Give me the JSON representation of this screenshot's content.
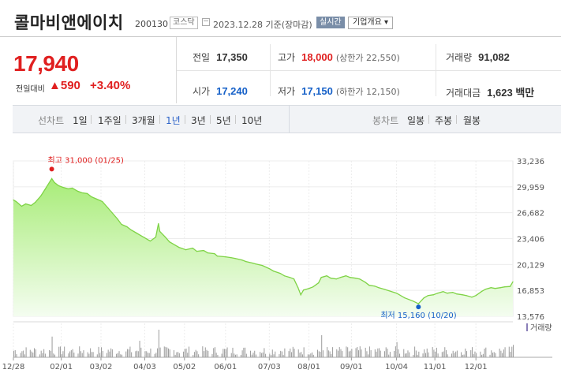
{
  "header": {
    "name": "콜마비앤에이치",
    "code": "200130",
    "market": "코스닥",
    "as_of": "2023.12.28 기준(장마감)",
    "realtime_label": "실시간",
    "corp_overview_label": "기업개요 ▾"
  },
  "price": {
    "current": "17,940",
    "change_label": "전일대비",
    "change_amount": "▲590",
    "change_pct": "+3.40%"
  },
  "stats": {
    "prev_close_label": "전일",
    "prev_close": "17,350",
    "high_label": "고가",
    "high": "18,000",
    "upper_limit": "(상한가 22,550)",
    "volume_label": "거래량",
    "volume": "91,082",
    "open_label": "시가",
    "open": "17,240",
    "low_label": "저가",
    "low": "17,150",
    "lower_limit": "(하한가 12,150)",
    "value_label": "거래대금",
    "value": "1,623 백만"
  },
  "tabs": {
    "line_chart_title": "선차트",
    "periods": [
      "1일",
      "1주일",
      "3개월",
      "1년",
      "3년",
      "5년",
      "10년"
    ],
    "active_period": "1년",
    "candle_title": "봉차트",
    "candles": [
      "일봉",
      "주봉",
      "월봉"
    ]
  },
  "colors": {
    "up": "#e02020",
    "down": "#1560c8",
    "line": "#7fd346",
    "area_top": "#a8ec78",
    "area_bottom": "#f4fdf0",
    "volume": "#9b9b9b"
  },
  "chart_data": {
    "type": "area",
    "y_ticks": [
      "33,236",
      "29,959",
      "26,682",
      "23,406",
      "20,129",
      "16,853",
      "13,576"
    ],
    "ylim": [
      13576,
      33236
    ],
    "x_tick_labels": [
      "12/28",
      "02/01",
      "03/02",
      "04/03",
      "05/02",
      "06/01",
      "07/03",
      "08/01",
      "09/01",
      "10/04",
      "11/01",
      "12/01"
    ],
    "x_tick_dates": [
      "2022-12-28",
      "2023-02-01",
      "2023-03-02",
      "2023-04-03",
      "2023-05-02",
      "2023-06-01",
      "2023-07-03",
      "2023-08-01",
      "2023-09-01",
      "2023-10-04",
      "2023-11-01",
      "2023-12-01"
    ],
    "x_range": [
      "2022-12-28",
      "2023-12-28"
    ],
    "series": [
      {
        "values": [
          [
            "2022-12-28",
            28300
          ],
          [
            "2022-12-30",
            28100
          ],
          [
            "2023-01-03",
            27500
          ],
          [
            "2023-01-06",
            27800
          ],
          [
            "2023-01-10",
            27600
          ],
          [
            "2023-01-13",
            28000
          ],
          [
            "2023-01-17",
            28800
          ],
          [
            "2023-01-20",
            29600
          ],
          [
            "2023-01-25",
            31000
          ],
          [
            "2023-01-27",
            30500
          ],
          [
            "2023-01-30",
            30100
          ],
          [
            "2023-02-02",
            29900
          ],
          [
            "2023-02-06",
            29700
          ],
          [
            "2023-02-09",
            29800
          ],
          [
            "2023-02-13",
            29400
          ],
          [
            "2023-02-16",
            29200
          ],
          [
            "2023-02-20",
            29100
          ],
          [
            "2023-02-23",
            28700
          ],
          [
            "2023-02-27",
            28400
          ],
          [
            "2023-03-03",
            28100
          ],
          [
            "2023-03-07",
            27300
          ],
          [
            "2023-03-10",
            26700
          ],
          [
            "2023-03-14",
            25900
          ],
          [
            "2023-03-17",
            25200
          ],
          [
            "2023-03-21",
            24900
          ],
          [
            "2023-03-24",
            24500
          ],
          [
            "2023-03-28",
            24100
          ],
          [
            "2023-03-31",
            23800
          ],
          [
            "2023-04-04",
            23400
          ],
          [
            "2023-04-07",
            23100
          ],
          [
            "2023-04-11",
            23600
          ],
          [
            "2023-04-13",
            25300
          ],
          [
            "2023-04-14",
            24300
          ],
          [
            "2023-04-18",
            23600
          ],
          [
            "2023-04-21",
            23000
          ],
          [
            "2023-04-25",
            22600
          ],
          [
            "2023-04-28",
            22300
          ],
          [
            "2023-05-03",
            22000
          ],
          [
            "2023-05-08",
            22200
          ],
          [
            "2023-05-11",
            21800
          ],
          [
            "2023-05-16",
            21900
          ],
          [
            "2023-05-19",
            21600
          ],
          [
            "2023-05-24",
            21500
          ],
          [
            "2023-05-26",
            21200
          ],
          [
            "2023-06-01",
            21100
          ],
          [
            "2023-06-05",
            21000
          ],
          [
            "2023-06-08",
            20900
          ],
          [
            "2023-06-13",
            20700
          ],
          [
            "2023-06-16",
            20500
          ],
          [
            "2023-06-21",
            20300
          ],
          [
            "2023-06-23",
            20200
          ],
          [
            "2023-06-28",
            20000
          ],
          [
            "2023-07-03",
            19600
          ],
          [
            "2023-07-06",
            19300
          ],
          [
            "2023-07-11",
            19000
          ],
          [
            "2023-07-14",
            18700
          ],
          [
            "2023-07-18",
            18500
          ],
          [
            "2023-07-21",
            18300
          ],
          [
            "2023-07-24",
            17200
          ],
          [
            "2023-07-26",
            16300
          ],
          [
            "2023-07-28",
            16900
          ],
          [
            "2023-08-01",
            17100
          ],
          [
            "2023-08-04",
            17300
          ],
          [
            "2023-08-08",
            17800
          ],
          [
            "2023-08-10",
            18500
          ],
          [
            "2023-08-14",
            18700
          ],
          [
            "2023-08-17",
            18400
          ],
          [
            "2023-08-21",
            18300
          ],
          [
            "2023-08-24",
            18500
          ],
          [
            "2023-08-28",
            18700
          ],
          [
            "2023-08-31",
            18500
          ],
          [
            "2023-09-04",
            18400
          ],
          [
            "2023-09-07",
            18300
          ],
          [
            "2023-09-11",
            17900
          ],
          [
            "2023-09-14",
            17500
          ],
          [
            "2023-09-18",
            17400
          ],
          [
            "2023-09-21",
            17200
          ],
          [
            "2023-09-25",
            17000
          ],
          [
            "2023-10-04",
            16500
          ],
          [
            "2023-10-10",
            15900
          ],
          [
            "2023-10-16",
            15500
          ],
          [
            "2023-10-20",
            15160
          ],
          [
            "2023-10-24",
            15900
          ],
          [
            "2023-10-27",
            16200
          ],
          [
            "2023-10-31",
            16300
          ],
          [
            "2023-11-03",
            16500
          ],
          [
            "2023-11-07",
            16700
          ],
          [
            "2023-11-10",
            16500
          ],
          [
            "2023-11-14",
            16600
          ],
          [
            "2023-11-17",
            16400
          ],
          [
            "2023-11-21",
            16300
          ],
          [
            "2023-11-24",
            16200
          ],
          [
            "2023-11-28",
            16000
          ],
          [
            "2023-12-01",
            16200
          ],
          [
            "2023-12-05",
            16700
          ],
          [
            "2023-12-08",
            17000
          ],
          [
            "2023-12-12",
            17200
          ],
          [
            "2023-12-15",
            17100
          ],
          [
            "2023-12-19",
            17200
          ],
          [
            "2023-12-22",
            17300
          ],
          [
            "2023-12-26",
            17350
          ],
          [
            "2023-12-28",
            17940
          ]
        ]
      }
    ],
    "annotations": {
      "high": {
        "label": "최고 31,000 (01/25)",
        "date": "2023-01-25",
        "value": 31000
      },
      "low": {
        "label": "최저 15,160 (10/20)",
        "date": "2023-10-20",
        "value": 15160
      }
    },
    "volume_label": "거래량",
    "grid": true
  }
}
